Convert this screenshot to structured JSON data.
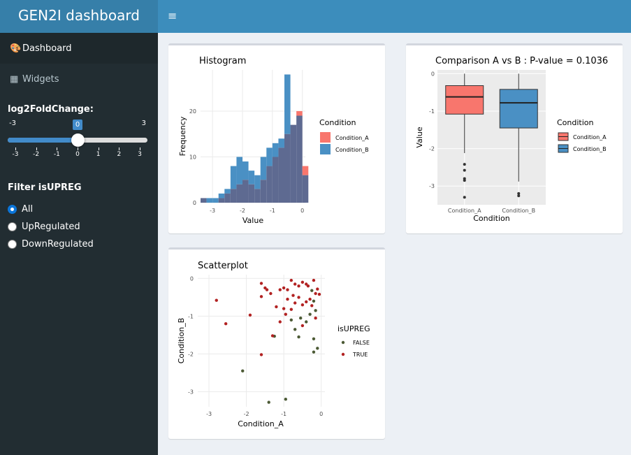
{
  "app": {
    "title": "GEN2I dashboard",
    "toggle_glyph": "≡"
  },
  "sidebar": {
    "items": [
      {
        "label": "Dashboard",
        "icon": "palette-icon",
        "glyph": "🎨",
        "active": true
      },
      {
        "label": "Widgets",
        "icon": "table-icon",
        "glyph": "▦",
        "active": false
      }
    ],
    "slider": {
      "label": "log2FoldChange:",
      "min": "-3",
      "max": "3",
      "value": "0",
      "fraction": 0.5,
      "ticks": [
        "-3",
        "-2",
        "-1",
        "0",
        "1",
        "2",
        "3"
      ]
    },
    "filter": {
      "label": "Filter isUPREG",
      "options": [
        {
          "label": "All",
          "checked": true
        },
        {
          "label": "UpRegulated",
          "checked": false
        },
        {
          "label": "DownRegulated",
          "checked": false
        }
      ]
    }
  },
  "colors": {
    "condition_a": "#f8766d",
    "condition_b": "#4a90c4",
    "overlap": "#5e6a91",
    "false": "#4c5a35",
    "true": "#b22222"
  },
  "chart_data": [
    {
      "type": "bar",
      "title": "Histogram",
      "xlabel": "Value",
      "ylabel": "Frequency",
      "x_ticks": [
        "-3",
        "-2",
        "-1",
        "0"
      ],
      "y_ticks": [
        "0",
        "10",
        "20"
      ],
      "xlim": [
        -3.4,
        0.1
      ],
      "ylim": [
        0,
        29
      ],
      "bin_width": 0.2,
      "bin_starts": [
        -3.4,
        -3.2,
        -3.0,
        -2.8,
        -2.6,
        -2.4,
        -2.2,
        -2.0,
        -1.8,
        -1.6,
        -1.4,
        -1.2,
        -1.0,
        -0.8,
        -0.6,
        -0.4,
        -0.2,
        0.0
      ],
      "legend_title": "Condition",
      "series": [
        {
          "name": "Condition_A",
          "values": [
            1,
            0,
            0,
            1,
            2,
            3,
            4,
            5,
            4,
            3,
            5,
            8,
            10,
            12,
            15,
            17,
            20,
            8
          ]
        },
        {
          "name": "Condition_B",
          "values": [
            1,
            1,
            1,
            2,
            3,
            8,
            10,
            9,
            7,
            6,
            10,
            12,
            13,
            14,
            28,
            17,
            19,
            6
          ]
        }
      ]
    },
    {
      "type": "box",
      "title": "Comparison A vs B : P-value = 0.1036",
      "xlabel": "Condition",
      "ylabel": "Value",
      "categories": [
        "Condition_A",
        "Condition_B"
      ],
      "y_ticks": [
        "0",
        "-1",
        "-2",
        "-3"
      ],
      "ylim": [
        -3.5,
        0.1
      ],
      "legend_title": "Condition",
      "boxes": [
        {
          "name": "Condition_A",
          "whisker_high": 0.0,
          "q3": -0.32,
          "median": -0.62,
          "q1": -1.08,
          "whisker_low": -2.12,
          "outliers": [
            -2.42,
            -2.58,
            -2.8,
            -2.85,
            -3.3
          ]
        },
        {
          "name": "Condition_B",
          "whisker_high": 0.0,
          "q3": -0.42,
          "median": -0.78,
          "q1": -1.45,
          "whisker_low": -2.88,
          "outliers": [
            -3.2,
            -3.26
          ]
        }
      ]
    },
    {
      "type": "scatter",
      "title": "Scatterplot",
      "xlabel": "Condition_A",
      "ylabel": "Condition_B",
      "x_ticks": [
        "-3",
        "-2",
        "-1",
        "0"
      ],
      "y_ticks": [
        "0",
        "-1",
        "-2",
        "-3"
      ],
      "xlim": [
        -3.3,
        0.1
      ],
      "ylim": [
        -3.4,
        0.1
      ],
      "legend_title": "isUPREG",
      "series": [
        {
          "name": "FALSE",
          "points": [
            [
              -0.25,
              -0.32
            ],
            [
              -0.2,
              -0.6
            ],
            [
              -0.15,
              -0.85
            ],
            [
              -0.3,
              -0.95
            ],
            [
              -0.55,
              -1.05
            ],
            [
              -0.7,
              -1.35
            ],
            [
              -0.8,
              -1.1
            ],
            [
              -0.4,
              -1.15
            ],
            [
              -0.6,
              -1.55
            ],
            [
              -0.2,
              -1.6
            ],
            [
              -0.1,
              -1.85
            ],
            [
              -0.2,
              -1.95
            ],
            [
              -1.25,
              -1.53
            ],
            [
              -2.1,
              -2.45
            ],
            [
              -1.4,
              -3.28
            ],
            [
              -0.95,
              -3.2
            ]
          ]
        },
        {
          "name": "TRUE",
          "points": [
            [
              -2.8,
              -0.58
            ],
            [
              -2.55,
              -1.2
            ],
            [
              -1.9,
              -0.97
            ],
            [
              -1.6,
              -0.13
            ],
            [
              -1.5,
              -0.25
            ],
            [
              -1.45,
              -0.3
            ],
            [
              -1.6,
              -0.48
            ],
            [
              -1.35,
              -0.4
            ],
            [
              -1.1,
              -0.3
            ],
            [
              -1.0,
              -0.25
            ],
            [
              -0.9,
              -0.3
            ],
            [
              -0.8,
              -0.05
            ],
            [
              -0.7,
              -0.15
            ],
            [
              -0.6,
              -0.2
            ],
            [
              -0.5,
              -0.1
            ],
            [
              -0.4,
              -0.15
            ],
            [
              -0.35,
              -0.2
            ],
            [
              -0.2,
              -0.05
            ],
            [
              -0.15,
              -0.4
            ],
            [
              -0.05,
              -0.42
            ],
            [
              -0.1,
              -0.28
            ],
            [
              -0.3,
              -0.55
            ],
            [
              -0.4,
              -0.62
            ],
            [
              -0.5,
              -0.7
            ],
            [
              -0.6,
              -0.5
            ],
            [
              -0.7,
              -0.65
            ],
            [
              -0.75,
              -0.45
            ],
            [
              -0.9,
              -0.55
            ],
            [
              -1.0,
              -0.8
            ],
            [
              -1.2,
              -0.75
            ],
            [
              -0.8,
              -0.82
            ],
            [
              -0.95,
              -0.95
            ],
            [
              -1.1,
              -1.15
            ],
            [
              -0.5,
              -1.25
            ],
            [
              -0.15,
              -1.05
            ],
            [
              -1.6,
              -2.02
            ],
            [
              -1.3,
              -1.52
            ],
            [
              -0.25,
              -0.72
            ]
          ]
        }
      ]
    }
  ]
}
